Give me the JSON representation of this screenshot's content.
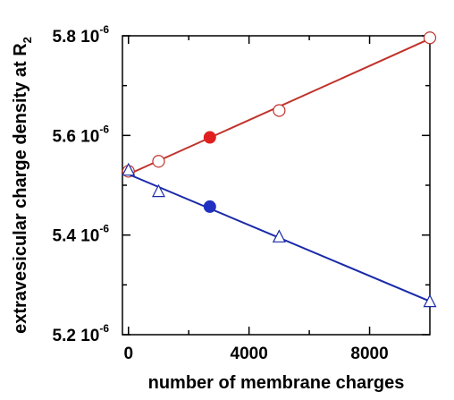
{
  "chart_data": {
    "type": "scatter",
    "xlabel": "number of membrane charges",
    "ylabel_main": "extravesicular charge density at R",
    "ylabel_subscript": "2",
    "xlim": [
      -200,
      10000
    ],
    "ylim": [
      5.2e-06,
      5.8e-06
    ],
    "x_ticks": [
      0,
      4000,
      8000
    ],
    "x_tick_labels": [
      "0",
      "4000",
      "8000"
    ],
    "y_ticks": [
      5.2e-06,
      5.4e-06,
      5.6e-06,
      5.8e-06
    ],
    "y_tick_labels": [
      {
        "mantissa": "5.2 10",
        "exponent": "-6"
      },
      {
        "mantissa": "5.4 10",
        "exponent": "-6"
      },
      {
        "mantissa": "5.6 10",
        "exponent": "-6"
      },
      {
        "mantissa": "5.8 10",
        "exponent": "-6"
      }
    ],
    "grid": false,
    "legend": "none",
    "series": [
      {
        "marker": "open-circle",
        "color": "#c0332b",
        "line": {
          "x": [
            0,
            10000
          ],
          "y": [
            5.522e-06,
            5.794e-06
          ]
        },
        "points": [
          {
            "x": 0,
            "y": 5.528e-06
          },
          {
            "x": 1000,
            "y": 5.548e-06
          },
          {
            "x": 5000,
            "y": 5.65e-06
          },
          {
            "x": 10000,
            "y": 5.796e-06
          }
        ],
        "highlight": {
          "x": 2700,
          "y": 5.596e-06,
          "fill": "#e02020"
        }
      },
      {
        "marker": "open-triangle",
        "color": "#1a2aa8",
        "line": {
          "x": [
            0,
            10000
          ],
          "y": [
            5.522e-06,
            5.267e-06
          ]
        },
        "points": [
          {
            "x": 0,
            "y": 5.53e-06
          },
          {
            "x": 1000,
            "y": 5.487e-06
          },
          {
            "x": 5000,
            "y": 5.396e-06
          },
          {
            "x": 10000,
            "y": 5.266e-06
          }
        ],
        "highlight": {
          "x": 2700,
          "y": 5.457e-06,
          "fill": "#2030c0"
        }
      }
    ]
  }
}
